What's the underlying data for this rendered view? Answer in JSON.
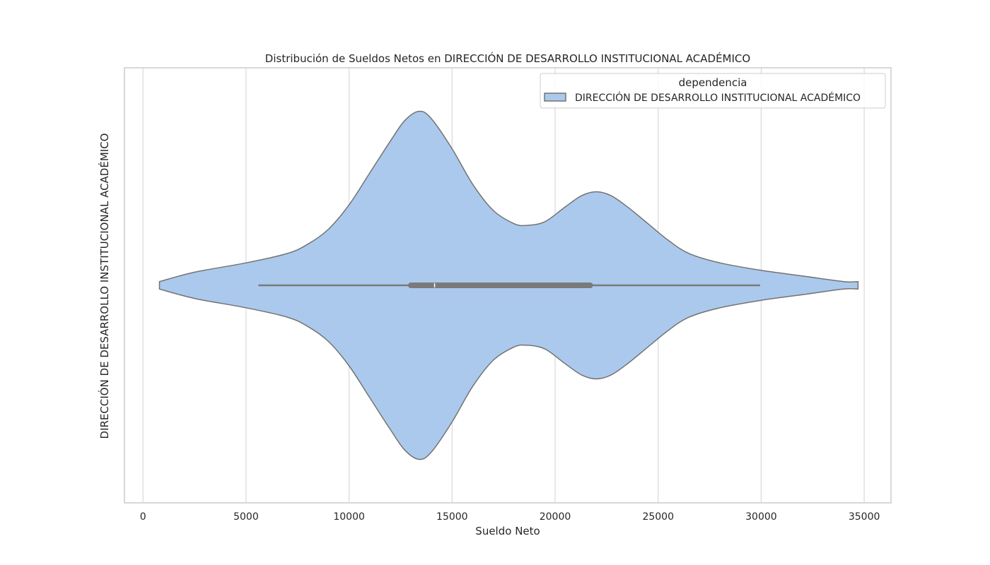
{
  "chart_data": {
    "type": "violin",
    "title": "Distribución de Sueldos Netos en DIRECCIÓN DE DESARROLLO INSTITUCIONAL ACADÉMICO",
    "xlabel": "Sueldo Neto",
    "ylabel": "DIRECCIÓN DE DESARROLLO INSTITUCIONAL ACADÉMICO",
    "xlim": [
      -900,
      36300
    ],
    "xticks": [
      0,
      5000,
      10000,
      15000,
      20000,
      25000,
      30000,
      35000
    ],
    "xtick_labels": [
      "0",
      "5000",
      "10000",
      "15000",
      "20000",
      "25000",
      "30000",
      "35000"
    ],
    "grid": "vertical",
    "legend": {
      "title": "dependencia",
      "placement": "upper-right",
      "entries": [
        "DIRECCIÓN DE DESARROLLO INSTITUCIONAL ACADÉMICO"
      ]
    },
    "series": [
      {
        "name": "DIRECCIÓN DE DESARROLLO INSTITUCIONAL ACADÉMICO",
        "color": "#abc9ec",
        "edge_color": "#737373",
        "density_profile": {
          "x": [
            800,
            2500,
            5000,
            7000,
            8000,
            9000,
            10000,
            11000,
            12000,
            12700,
            13400,
            14000,
            15000,
            16000,
            17000,
            18000,
            18600,
            19500,
            20500,
            21300,
            22000,
            22700,
            23500,
            24500,
            25500,
            26500,
            28000,
            30000,
            32000,
            34000,
            34700
          ],
          "relative_width": [
            0.02,
            0.07,
            0.12,
            0.17,
            0.22,
            0.3,
            0.43,
            0.6,
            0.77,
            0.88,
            0.93,
            0.89,
            0.73,
            0.54,
            0.4,
            0.33,
            0.32,
            0.34,
            0.42,
            0.48,
            0.5,
            0.48,
            0.42,
            0.33,
            0.24,
            0.17,
            0.12,
            0.08,
            0.05,
            0.02,
            0.02
          ]
        },
        "whisker_low": 5600,
        "q1": 13000,
        "median": 14150,
        "q3": 21700,
        "whisker_high": 29950
      }
    ]
  }
}
